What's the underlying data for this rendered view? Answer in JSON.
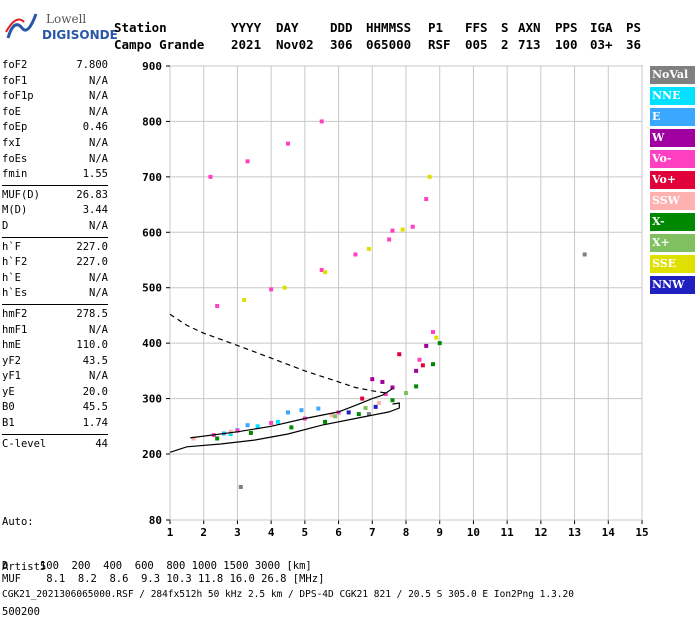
{
  "logo": {
    "top": "Lowell",
    "bottom": "DIGISONDE"
  },
  "header": {
    "row1": [
      "Station",
      "YYYY",
      "DAY",
      "DDD",
      "HHMMSS",
      "P1",
      "FFS",
      "S",
      "AXN",
      "PPS",
      "IGA",
      "PS"
    ],
    "row2": [
      "Campo Grande",
      "2021",
      "Nov02",
      "306",
      "065000",
      "RSF",
      "005",
      "2",
      "713",
      "100",
      "03+",
      "36"
    ]
  },
  "params": {
    "group1": [
      {
        "label": "foF2",
        "value": "7.800"
      },
      {
        "label": "foF1",
        "value": "N/A"
      },
      {
        "label": "foF1p",
        "value": "N/A"
      },
      {
        "label": "foE",
        "value": "N/A"
      },
      {
        "label": "foEp",
        "value": "0.46"
      },
      {
        "label": "fxI",
        "value": "N/A"
      },
      {
        "label": "foEs",
        "value": "N/A"
      },
      {
        "label": "fmin",
        "value": "1.55"
      }
    ],
    "group2": [
      {
        "label": "MUF(D)",
        "value": "26.83"
      },
      {
        "label": "M(D)",
        "value": "3.44"
      },
      {
        "label": "D",
        "value": "N/A"
      }
    ],
    "group3": [
      {
        "label": "h`F",
        "value": "227.0"
      },
      {
        "label": "h`F2",
        "value": "227.0"
      },
      {
        "label": "h`E",
        "value": "N/A"
      },
      {
        "label": "h`Es",
        "value": "N/A"
      }
    ],
    "group4": [
      {
        "label": "hmF2",
        "value": "278.5"
      },
      {
        "label": "hmF1",
        "value": "N/A"
      },
      {
        "label": "hmE",
        "value": "110.0"
      },
      {
        "label": "yF2",
        "value": "43.5"
      },
      {
        "label": "yF1",
        "value": "N/A"
      },
      {
        "label": "yE",
        "value": "20.0"
      },
      {
        "label": "B0",
        "value": "45.5"
      },
      {
        "label": "B1",
        "value": "1.74"
      }
    ],
    "group5": [
      {
        "label": "C-level",
        "value": "44"
      }
    ]
  },
  "auto": {
    "line1": "Auto:",
    "line2": "Artist5",
    "line3": "500200"
  },
  "legend": [
    {
      "label": "NoVal",
      "color": "#808080"
    },
    {
      "label": "NNE",
      "color": "#00e0ff"
    },
    {
      "label": "E",
      "color": "#3aa8ff"
    },
    {
      "label": "W",
      "color": "#a000a0"
    },
    {
      "label": "Vo-",
      "color": "#ff40c0"
    },
    {
      "label": "Vo+",
      "color": "#e0003a"
    },
    {
      "label": "SSW",
      "color": "#ffb0b0"
    },
    {
      "label": "X-",
      "color": "#008800"
    },
    {
      "label": "X+",
      "color": "#80c060"
    },
    {
      "label": "SSE",
      "color": "#e0e000"
    },
    {
      "label": "NNW",
      "color": "#2020c0"
    }
  ],
  "footer": {
    "d_line": "D     100  200  400  600  800 1000 1500 3000 [km]",
    "muf_line": "MUF    8.1  8.2  8.6  9.3 10.3 11.8 16.0 26.8 [MHz]",
    "file_line": "CGK21_2021306065000.RSF / 284fx512h 50 kHz 2.5 km / DPS-4D CGK21 821 / 20.5 S 305.0 E Ion2Png 1.3.20"
  },
  "chart_data": {
    "type": "scatter",
    "xlabel": "",
    "ylabel": "",
    "xlim": [
      1,
      15
    ],
    "ylim": [
      80,
      900
    ],
    "x_ticks": [
      1,
      2,
      3,
      4,
      5,
      6,
      7,
      8,
      9,
      10,
      11,
      12,
      13,
      14,
      15
    ],
    "y_ticks": [
      80,
      200,
      300,
      400,
      500,
      600,
      700,
      800,
      900
    ],
    "grid": true,
    "series": [
      {
        "name": "NoVal",
        "points": [
          [
            6.9,
            272
          ],
          [
            13.3,
            560
          ],
          [
            3.1,
            140
          ]
        ]
      },
      {
        "name": "NNE",
        "points": [
          [
            2.8,
            236
          ],
          [
            3.6,
            250
          ],
          [
            4.2,
            258
          ]
        ]
      },
      {
        "name": "E",
        "points": [
          [
            3.3,
            252
          ],
          [
            4.5,
            275
          ],
          [
            4.9,
            279
          ],
          [
            5.4,
            282
          ],
          [
            2.6,
            237
          ],
          [
            3.0,
            243
          ]
        ]
      },
      {
        "name": "W",
        "points": [
          [
            7.0,
            335
          ],
          [
            7.3,
            330
          ],
          [
            7.6,
            320
          ],
          [
            8.3,
            350
          ],
          [
            8.6,
            395
          ]
        ]
      },
      {
        "name": "Vo-",
        "points": [
          [
            2.3,
            234
          ],
          [
            3.0,
            242
          ],
          [
            4.0,
            256
          ],
          [
            5.0,
            264
          ],
          [
            6.0,
            275
          ],
          [
            7.4,
            308
          ],
          [
            8.4,
            370
          ],
          [
            8.8,
            420
          ],
          [
            2.4,
            467
          ],
          [
            4.0,
            497
          ],
          [
            5.5,
            532
          ],
          [
            6.5,
            560
          ],
          [
            7.5,
            587
          ],
          [
            8.2,
            610
          ],
          [
            2.2,
            700
          ],
          [
            3.3,
            728
          ],
          [
            4.5,
            760
          ],
          [
            5.5,
            800
          ],
          [
            7.6,
            603
          ],
          [
            8.6,
            660
          ]
        ]
      },
      {
        "name": "Vo+",
        "points": [
          [
            6.7,
            300
          ],
          [
            7.8,
            380
          ],
          [
            8.5,
            360
          ]
        ]
      },
      {
        "name": "SSW",
        "points": [
          [
            1.7,
            228
          ],
          [
            2.8,
            240
          ],
          [
            5.8,
            270
          ],
          [
            7.2,
            292
          ]
        ]
      },
      {
        "name": "X-",
        "points": [
          [
            2.4,
            228
          ],
          [
            3.4,
            238
          ],
          [
            4.6,
            248
          ],
          [
            5.6,
            258
          ],
          [
            6.6,
            272
          ],
          [
            7.6,
            297
          ],
          [
            8.3,
            322
          ],
          [
            8.8,
            362
          ],
          [
            9.0,
            400
          ]
        ]
      },
      {
        "name": "X+",
        "points": [
          [
            5.9,
            268
          ],
          [
            6.8,
            283
          ],
          [
            8.0,
            310
          ]
        ]
      },
      {
        "name": "SSE",
        "points": [
          [
            3.2,
            478
          ],
          [
            4.4,
            500
          ],
          [
            5.6,
            528
          ],
          [
            6.9,
            570
          ],
          [
            7.9,
            605
          ],
          [
            8.7,
            700
          ],
          [
            8.9,
            410
          ]
        ]
      },
      {
        "name": "NNW",
        "points": [
          [
            6.3,
            275
          ],
          [
            7.1,
            285
          ]
        ]
      }
    ],
    "lines": [
      {
        "name": "profile",
        "style": "solid",
        "points": [
          [
            1.0,
            203
          ],
          [
            1.5,
            213
          ],
          [
            2.5,
            218
          ],
          [
            3.5,
            225
          ],
          [
            4.5,
            236
          ],
          [
            5.5,
            252
          ],
          [
            6.5,
            264
          ],
          [
            7.5,
            276
          ],
          [
            7.8,
            283
          ],
          [
            7.8,
            292
          ],
          [
            7.6,
            290
          ]
        ]
      },
      {
        "name": "trace",
        "style": "solid",
        "points": [
          [
            1.6,
            229
          ],
          [
            3.0,
            240
          ],
          [
            4.0,
            250
          ],
          [
            5.0,
            264
          ],
          [
            6.0,
            276
          ],
          [
            6.6,
            290
          ],
          [
            7.0,
            300
          ],
          [
            7.3,
            306
          ],
          [
            7.6,
            318
          ]
        ]
      },
      {
        "name": "dashed",
        "style": "dashed",
        "points": [
          [
            1.0,
            452
          ],
          [
            1.5,
            432
          ],
          [
            2.0,
            418
          ],
          [
            3.0,
            396
          ],
          [
            4.0,
            373
          ],
          [
            5.0,
            350
          ],
          [
            6.0,
            330
          ],
          [
            6.5,
            320
          ],
          [
            7.0,
            314
          ],
          [
            7.4,
            310
          ]
        ]
      }
    ]
  }
}
